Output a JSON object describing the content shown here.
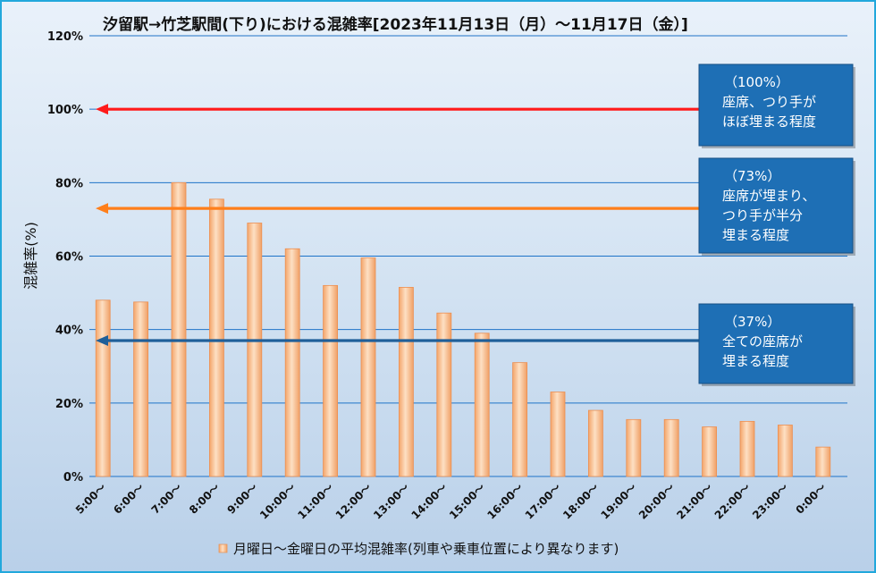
{
  "chart_data": {
    "type": "bar",
    "title": "汐留駅→竹芝駅間(下り)における混雑率[2023年11月13日（月）～11月17日（金）]",
    "ylabel": "混雑率(%)",
    "xlabel": "",
    "ylim": [
      0,
      120
    ],
    "yticks": [
      0,
      20,
      40,
      60,
      80,
      100,
      120
    ],
    "ytick_labels": [
      "0%",
      "20%",
      "40%",
      "60%",
      "80%",
      "100%",
      "120%"
    ],
    "grid": true,
    "legend_position": "bottom",
    "categories": [
      "5:00～",
      "6:00～",
      "7:00～",
      "8:00～",
      "9:00～",
      "10:00～",
      "11:00～",
      "12:00～",
      "13:00～",
      "14:00～",
      "15:00～",
      "16:00～",
      "17:00～",
      "18:00～",
      "19:00～",
      "20:00～",
      "21:00～",
      "22:00～",
      "23:00～",
      "0:00～"
    ],
    "series": [
      {
        "name": "月曜日～金曜日の平均混雑率(列車や乗車位置により異なります)",
        "color": "#f5b27a",
        "values": [
          48,
          47.5,
          80,
          75.5,
          69,
          62,
          52,
          59.5,
          51.5,
          44.5,
          39,
          31,
          23,
          18,
          15.5,
          15.5,
          13.5,
          15,
          14,
          8
        ]
      }
    ],
    "reference_lines": [
      {
        "value": 100,
        "color": "#ff1a1a",
        "label": "（100%）",
        "text": [
          "座席、つり手が",
          "ほぼ埋まる程度"
        ]
      },
      {
        "value": 73,
        "color": "#ff7f1a",
        "label": "（73%）",
        "text": [
          "座席が埋まり、",
          "つり手が半分",
          "埋まる程度"
        ]
      },
      {
        "value": 37,
        "color": "#1f5f99",
        "label": "（37%）",
        "text": [
          "全ての座席が",
          "埋まる程度"
        ]
      }
    ],
    "callout_color": "#1e6fb5"
  }
}
